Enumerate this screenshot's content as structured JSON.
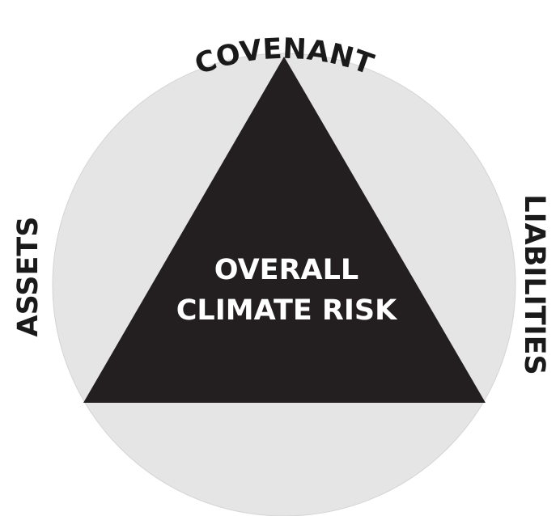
{
  "labels": {
    "top": "COVENANT",
    "left": "ASSETS",
    "right": "LIABILITIES"
  },
  "center": {
    "lines": [
      "OVERALL",
      "CLIMATE RISK"
    ]
  }
}
